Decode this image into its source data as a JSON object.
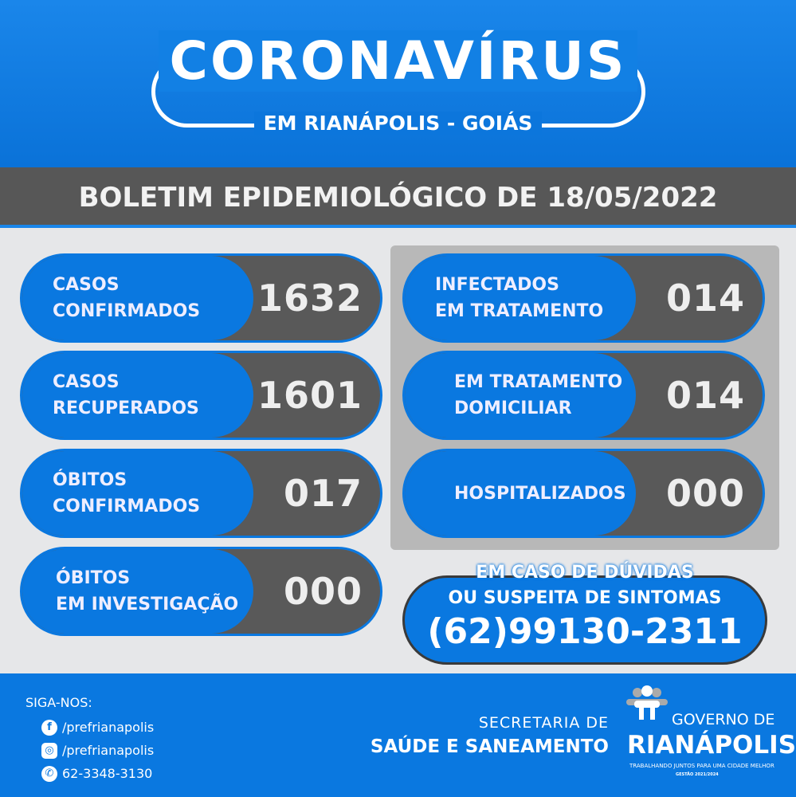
{
  "header": {
    "title": "CORONAVÍRUS",
    "subtitle": "EM RIANÁPOLIS - GOIÁS"
  },
  "bulletin": "BOLETIM EPIDEMIOLÓGICO DE 18/05/2022",
  "left_stats": [
    {
      "line1": "CASOS",
      "line2": "CONFIRMADOS",
      "value": "1632"
    },
    {
      "line1": "CASOS",
      "line2": "RECUPERADOS",
      "value": "1601"
    },
    {
      "line1": "ÓBITOS",
      "line2": "CONFIRMADOS",
      "value": "017"
    },
    {
      "line1": "ÓBITOS",
      "line2": "EM INVESTIGAÇÃO",
      "value": "000"
    }
  ],
  "right_stats": [
    {
      "line1": "INFECTADOS",
      "line2": "EM TRATAMENTO",
      "value": "014"
    },
    {
      "line1": "EM TRATAMENTO",
      "line2": "DOMICILIAR",
      "value": "014"
    },
    {
      "line1": "HOSPITALIZADOS",
      "line2": "",
      "value": "000"
    }
  ],
  "contact": {
    "line1": "EM CASO DE DÚVIDAS",
    "line2": "OU SUSPEITA DE SINTOMAS",
    "phone": "(62)99130-2311"
  },
  "footer": {
    "follow": "SIGA-NOS:",
    "social": [
      {
        "icon": "facebook-icon",
        "text": "/prefrianapolis"
      },
      {
        "icon": "instagram-icon",
        "text": "/prefrianapolis"
      },
      {
        "icon": "whatsapp-icon",
        "text": "62-3348-3130"
      }
    ],
    "secretaria_1": "SECRETARIA DE",
    "secretaria_2": "SAÚDE E SANEAMENTO",
    "gov": "GOVERNO DE",
    "city": "RIANÁPOLIS",
    "slogan": "TRABALHANDO JUNTOS PARA UMA CIDADE MELHOR",
    "gestao": "GESTÃO 2021/2024"
  },
  "colors": {
    "blue": "#0a78e0",
    "gray": "#595959",
    "light": "#e6e7e9"
  }
}
